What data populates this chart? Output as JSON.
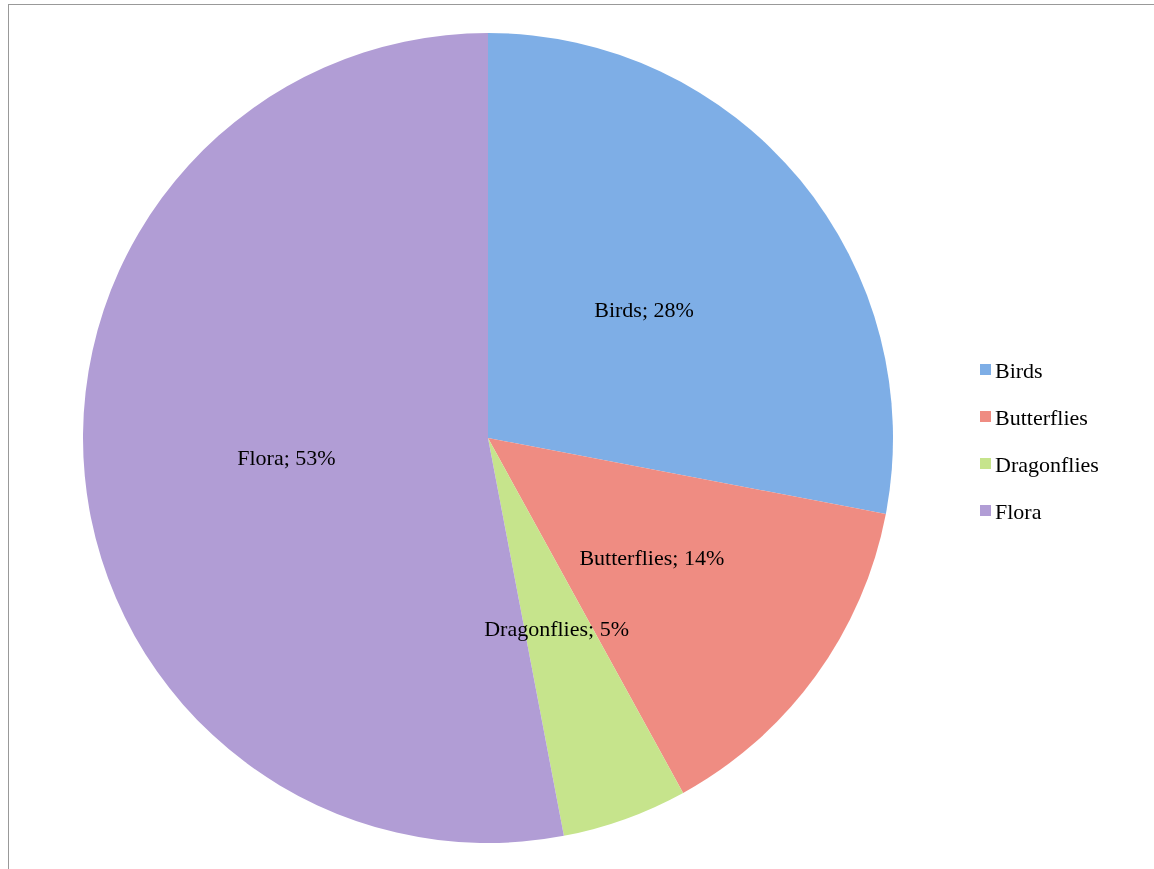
{
  "chart_data": {
    "type": "pie",
    "categories": [
      "Birds",
      "Butterflies",
      "Dragonflies",
      "Flora"
    ],
    "values": [
      28,
      14,
      5,
      53
    ],
    "colors": [
      "#7eaee6",
      "#ef8c82",
      "#c6e48c",
      "#b19dd5"
    ],
    "value_labels": [
      "Birds; 28%",
      "Butterflies; 14%",
      "Dragonflies; 5%",
      "Flora; 53%"
    ],
    "legend": "right"
  }
}
